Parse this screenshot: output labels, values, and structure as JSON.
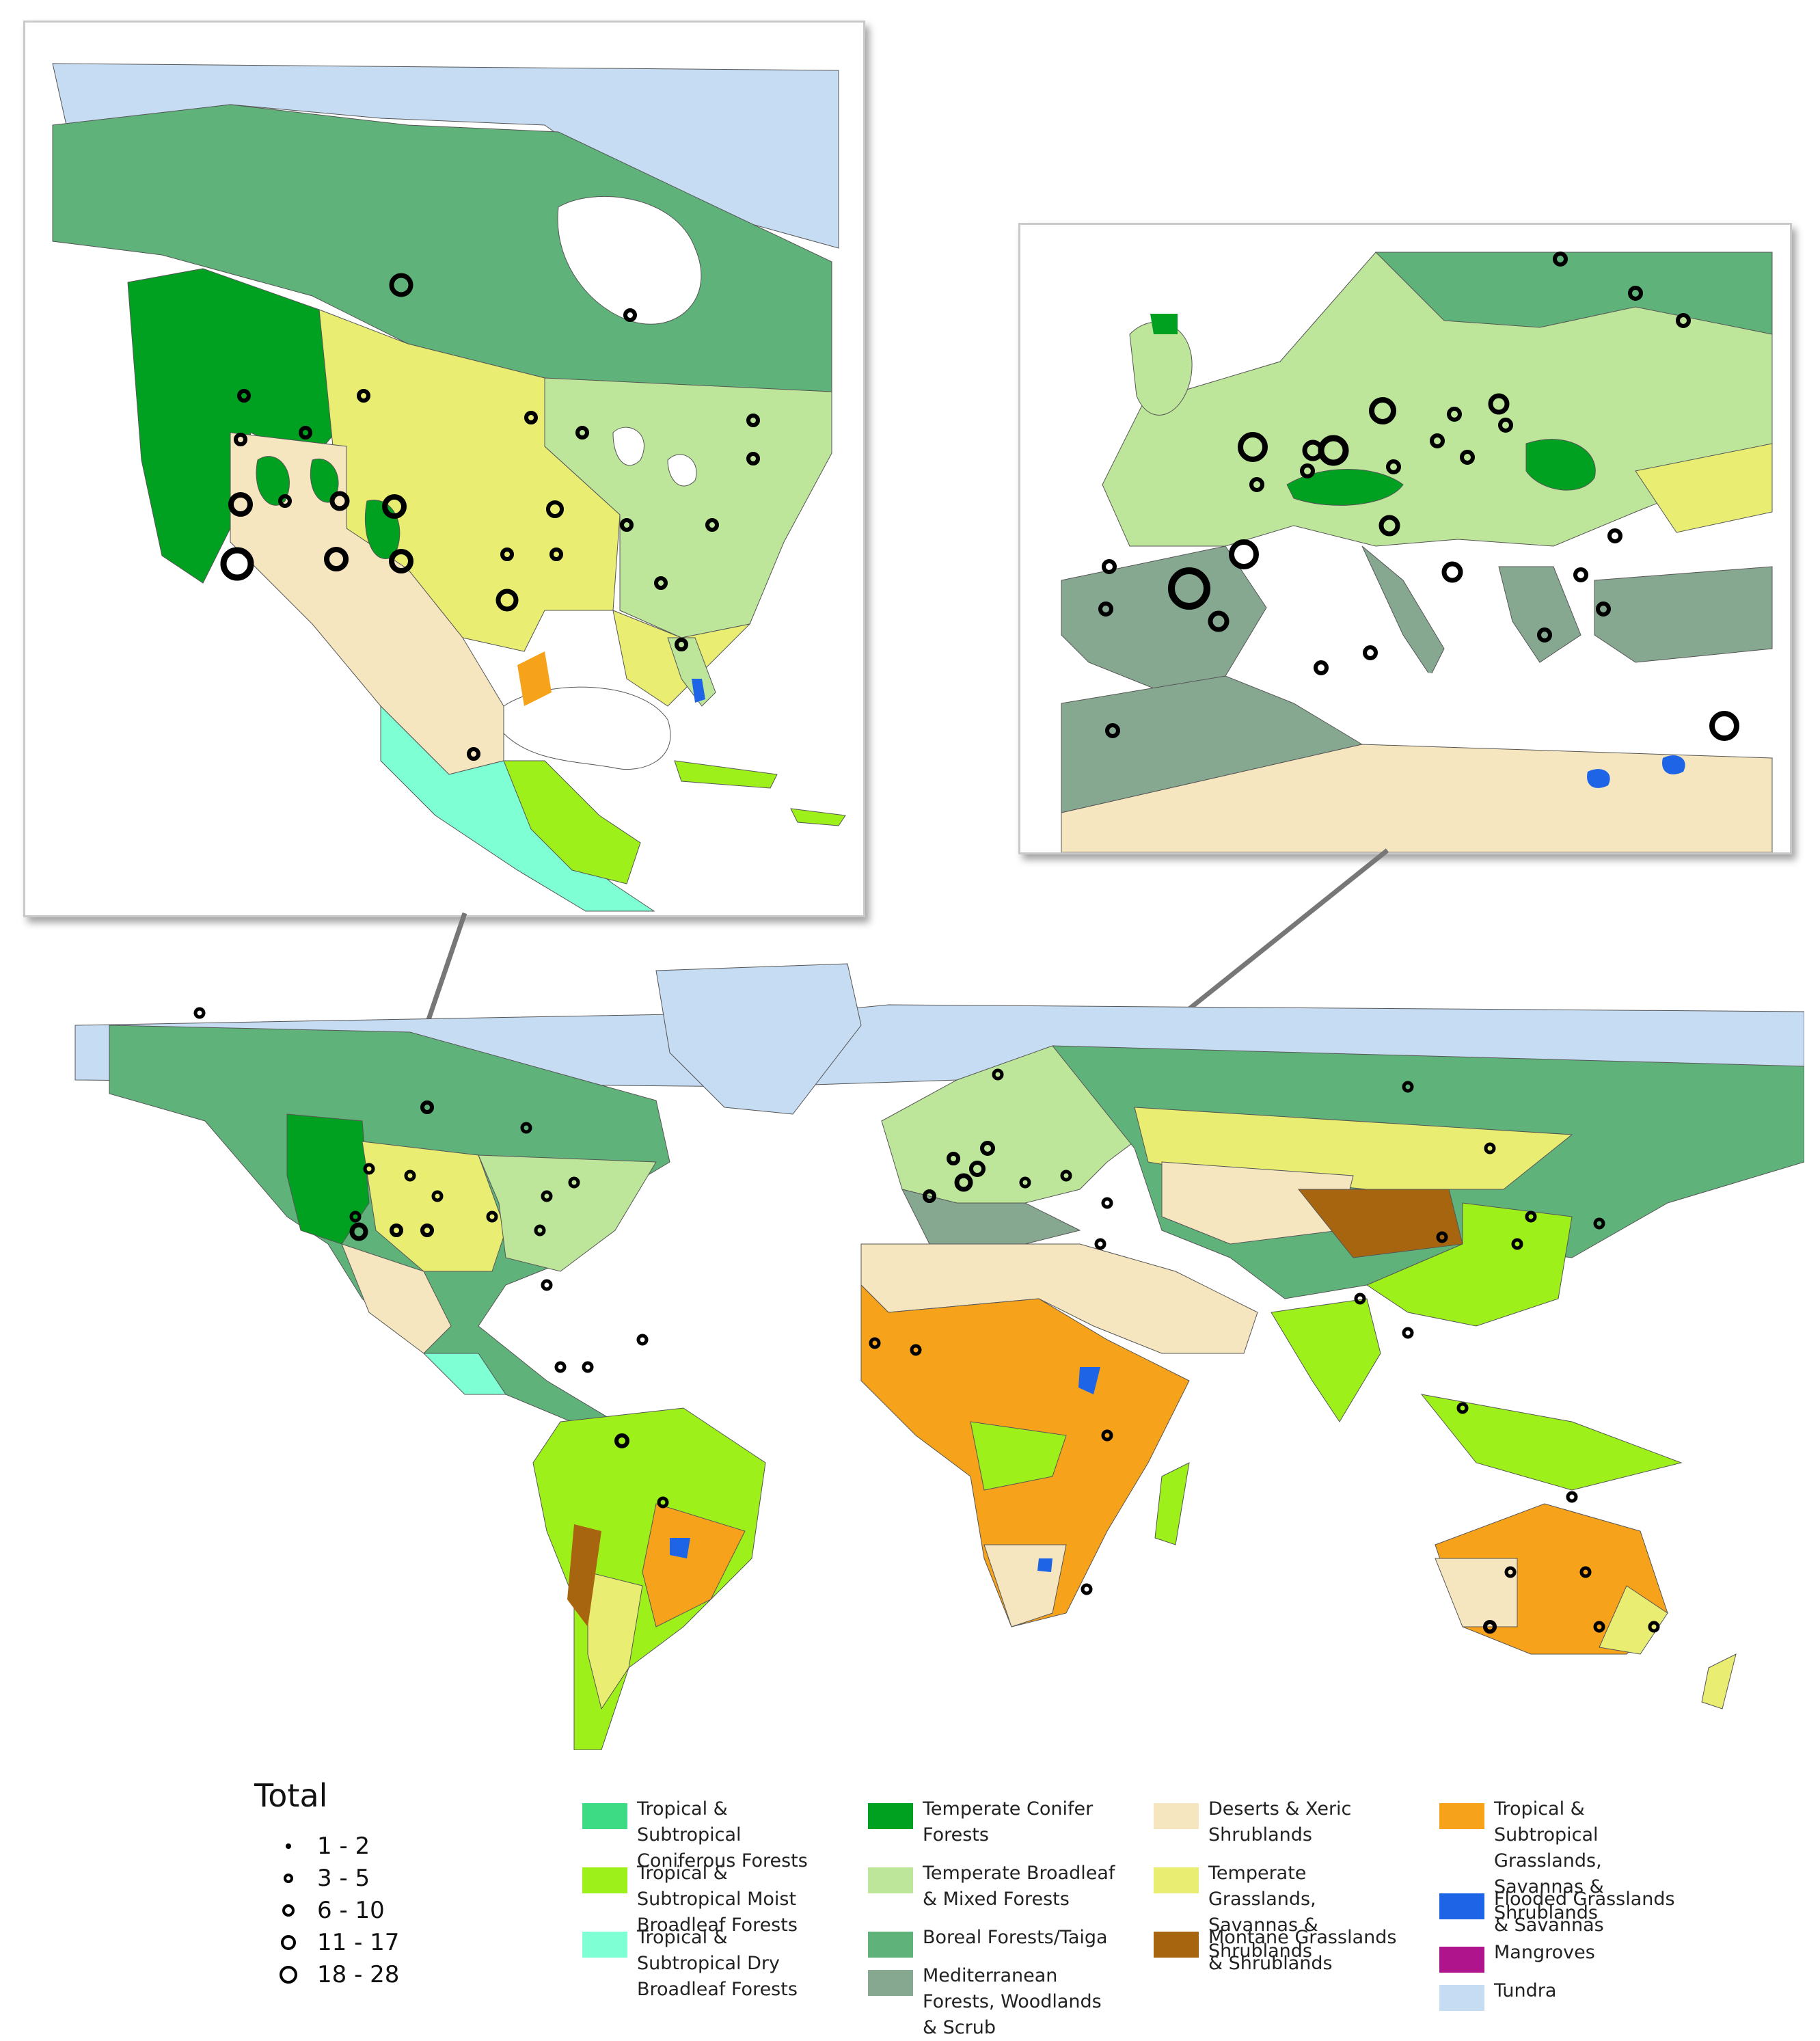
{
  "legend": {
    "title": "Total",
    "size_classes": [
      {
        "label": "1 - 2",
        "rank": 1
      },
      {
        "label": "3 - 5",
        "rank": 2
      },
      {
        "label": "6 - 10",
        "rank": 3
      },
      {
        "label": "11 - 17",
        "rank": 4
      },
      {
        "label": "18 - 28",
        "rank": 5
      }
    ],
    "biomes": [
      {
        "label": "Tropical & Subtropical Coniferous Forests",
        "color": "#3ddc84"
      },
      {
        "label": "Tropical & Subtropical Moist Broadleaf Forests",
        "color": "#9ef01a"
      },
      {
        "label": "Tropical & Subtropical Dry Broadleaf Forests",
        "color": "#7fffd4"
      },
      {
        "label": "Temperate Conifer Forests",
        "color": "#00a020"
      },
      {
        "label": "Temperate Broadleaf & Mixed Forests",
        "color": "#bde69a"
      },
      {
        "label": "Boreal Forests/Taiga",
        "color": "#5fb37a"
      },
      {
        "label": "Mediterranean Forests, Woodlands & Scrub",
        "color": "#86a891"
      },
      {
        "label": "Deserts & Xeric Shrublands",
        "color": "#f6e6c0"
      },
      {
        "label": "Temperate Grasslands, Savannas & Shrublands",
        "color": "#e9ee72"
      },
      {
        "label": "Montane Grasslands & Shrublands",
        "color": "#a8650f"
      },
      {
        "label": "Tropical & Subtropical Grasslands, Savannas & Shrublands",
        "color": "#f7a21b"
      },
      {
        "label": "Flooded Grasslands & Savannas",
        "color": "#1e64e6"
      },
      {
        "label": "Mangroves",
        "color": "#b0148c"
      },
      {
        "label": "Tundra",
        "color": "#c5dcf2"
      }
    ]
  },
  "insets": [
    {
      "region": "North America"
    },
    {
      "region": "Europe & Mediterranean"
    }
  ]
}
